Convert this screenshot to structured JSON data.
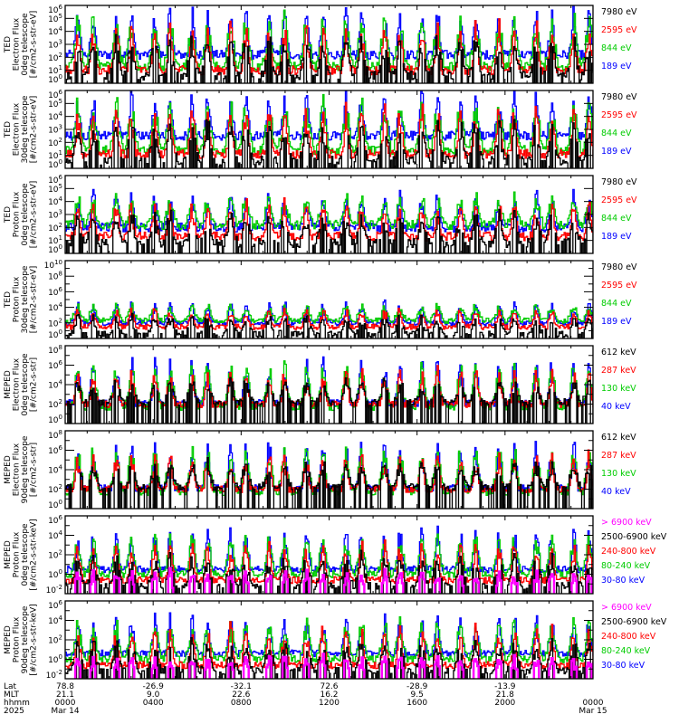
{
  "chart_data": {
    "type": "line",
    "title": "",
    "x_range_hours": [
      0,
      24
    ],
    "panels": [
      {
        "ylabel": [
          "TED",
          "Electron Flux",
          "0deg telescope",
          "[#/cm2-s-str-eV]"
        ],
        "yscale": "log",
        "ylim_exp": [
          0,
          6
        ],
        "yticks": [
          "10^0",
          "10^1",
          "10^2",
          "10^3",
          "10^4",
          "10^5",
          "10^6"
        ],
        "legend": [
          {
            "label": "7980 eV",
            "color": "#000000"
          },
          {
            "label": "2595 eV",
            "color": "#ff0000"
          },
          {
            "label": "844 eV",
            "color": "#00cc00"
          },
          {
            "label": "189 eV",
            "color": "#0000ff"
          }
        ],
        "baseline_exp": {
          "#0000ff": 2.2,
          "#00cc00": 1.3,
          "#ff0000": 1.0,
          "#000000": 0.6
        },
        "peak_exp": 5.5
      },
      {
        "ylabel": [
          "TED",
          "Electron Flux",
          "30deg telescope",
          "[#/cm2-s-str-eV]"
        ],
        "yscale": "log",
        "ylim_exp": [
          0,
          6
        ],
        "yticks": [
          "10^0",
          "10^1",
          "10^2",
          "10^3",
          "10^4",
          "10^5",
          "10^6"
        ],
        "legend": [
          {
            "label": "7980 eV",
            "color": "#000000"
          },
          {
            "label": "2595 eV",
            "color": "#ff0000"
          },
          {
            "label": "844 eV",
            "color": "#00cc00"
          },
          {
            "label": "189 eV",
            "color": "#0000ff"
          }
        ],
        "baseline_exp": {
          "#0000ff": 2.5,
          "#00cc00": 1.4,
          "#ff0000": 1.1,
          "#000000": 0.6
        },
        "peak_exp": 5.6
      },
      {
        "ylabel": [
          "TED",
          "Proton Flux",
          "0deg telescope",
          "[#/cm2-s-str-eV]"
        ],
        "yscale": "log",
        "ylim_exp": [
          0,
          6
        ],
        "yticks": [
          "10^0",
          "10^1",
          "10^2",
          "10^3",
          "10^4",
          "10^5",
          "10^6"
        ],
        "legend": [
          {
            "label": "7980 eV",
            "color": "#000000"
          },
          {
            "label": "2595 eV",
            "color": "#ff0000"
          },
          {
            "label": "844 eV",
            "color": "#00cc00"
          },
          {
            "label": "189 eV",
            "color": "#0000ff"
          }
        ],
        "baseline_exp": {
          "#0000ff": 2.0,
          "#00cc00": 2.2,
          "#ff0000": 1.3,
          "#000000": 0.8
        },
        "peak_exp": 4.6
      },
      {
        "ylabel": [
          "TED",
          "Proton Flux",
          "30deg telescope",
          "[#/cm2-s-str-eV]"
        ],
        "yscale": "log",
        "ylim_exp": [
          0,
          10
        ],
        "yticks": [
          "10^0",
          "10^2",
          "10^4",
          "10^6",
          "10^8",
          "10^10"
        ],
        "legend": [
          {
            "label": "7980 eV",
            "color": "#000000"
          },
          {
            "label": "2595 eV",
            "color": "#ff0000"
          },
          {
            "label": "844 eV",
            "color": "#00cc00"
          },
          {
            "label": "189 eV",
            "color": "#0000ff"
          }
        ],
        "baseline_exp": {
          "#0000ff": 2.0,
          "#00cc00": 2.3,
          "#ff0000": 1.5,
          "#000000": 0.6
        },
        "peak_exp": 4.5
      },
      {
        "ylabel": [
          "MEPED",
          "Electron Flux",
          "0deg telescope",
          "[#/cm2-s-str]"
        ],
        "yscale": "log",
        "ylim_exp": [
          0,
          8
        ],
        "yticks": [
          "10^0",
          "10^2",
          "10^4",
          "10^6",
          "10^8"
        ],
        "legend": [
          {
            "label": "612 keV",
            "color": "#000000"
          },
          {
            "label": "287 keV",
            "color": "#ff0000"
          },
          {
            "label": "130 keV",
            "color": "#00cc00"
          },
          {
            "label": "40 keV",
            "color": "#0000ff"
          }
        ],
        "baseline_exp": {
          "#0000ff": 2.1,
          "#00cc00": 1.7,
          "#ff0000": 2.0,
          "#000000": 2.2
        },
        "peak_exp": 6.3
      },
      {
        "ylabel": [
          "MEPED",
          "Electron Flux",
          "90deg telescope",
          "[#/cm2-s-str]"
        ],
        "yscale": "log",
        "ylim_exp": [
          0,
          8
        ],
        "yticks": [
          "10^0",
          "10^2",
          "10^4",
          "10^6",
          "10^8"
        ],
        "legend": [
          {
            "label": "612 keV",
            "color": "#000000"
          },
          {
            "label": "287 keV",
            "color": "#ff0000"
          },
          {
            "label": "130 keV",
            "color": "#00cc00"
          },
          {
            "label": "40 keV",
            "color": "#0000ff"
          }
        ],
        "baseline_exp": {
          "#0000ff": 2.1,
          "#00cc00": 1.7,
          "#ff0000": 2.0,
          "#000000": 2.2
        },
        "peak_exp": 6.6
      },
      {
        "ylabel": [
          "MEPED",
          "Proton Flux",
          "0deg telescope",
          "[#/cm2-s-str-keV]"
        ],
        "yscale": "log",
        "ylim_exp": [
          -2,
          6
        ],
        "yticks": [
          "10^-2",
          "10^0",
          "10^2",
          "10^4",
          "10^6"
        ],
        "legend": [
          {
            "label": "> 6900 keV",
            "color": "#ff00ff"
          },
          {
            "label": "2500-6900 keV",
            "color": "#000000"
          },
          {
            "label": "240-800 keV",
            "color": "#ff0000"
          },
          {
            "label": "80-240 keV",
            "color": "#00cc00"
          },
          {
            "label": "30-80 keV",
            "color": "#0000ff"
          }
        ],
        "baseline_exp": {
          "#0000ff": 0.5,
          "#00cc00": 0.0,
          "#ff0000": -0.6,
          "#000000": -1.2,
          "#ff00ff": -1.6
        },
        "peak_exp": 4.3
      },
      {
        "ylabel": [
          "MEPED",
          "Proton Flux",
          "90deg telescope",
          "[#/cm2-s-str-keV]"
        ],
        "yscale": "log",
        "ylim_exp": [
          -2,
          6
        ],
        "yticks": [
          "10^-2",
          "10^0",
          "10^2",
          "10^4",
          "10^6"
        ],
        "legend": [
          {
            "label": "> 6900 keV",
            "color": "#ff00ff"
          },
          {
            "label": "2500-6900 keV",
            "color": "#000000"
          },
          {
            "label": "240-800 keV",
            "color": "#ff0000"
          },
          {
            "label": "80-240 keV",
            "color": "#00cc00"
          },
          {
            "label": "30-80 keV",
            "color": "#0000ff"
          }
        ],
        "baseline_exp": {
          "#0000ff": 0.6,
          "#00cc00": 0.0,
          "#ff0000": -0.6,
          "#000000": -1.2,
          "#ff00ff": -1.6
        },
        "peak_exp": 4.3
      }
    ],
    "x_axis": {
      "row_labels": [
        "Lat",
        "MLT",
        "hhmm",
        "2025"
      ],
      "ticks": [
        {
          "hour": 0,
          "lat": "78.8",
          "mlt": "21.1",
          "hhmm": "0000",
          "date": "Mar 14"
        },
        {
          "hour": 4,
          "lat": "-26.9",
          "mlt": "9.0",
          "hhmm": "0400",
          "date": ""
        },
        {
          "hour": 8,
          "lat": "-32.1",
          "mlt": "22.6",
          "hhmm": "0800",
          "date": ""
        },
        {
          "hour": 12,
          "lat": "72.6",
          "mlt": "16.2",
          "hhmm": "1200",
          "date": ""
        },
        {
          "hour": 16,
          "lat": "-28.9",
          "mlt": "9.5",
          "hhmm": "1600",
          "date": ""
        },
        {
          "hour": 20,
          "lat": "-13.9",
          "mlt": "21.8",
          "hhmm": "2000",
          "date": ""
        },
        {
          "hour": 24,
          "lat": "",
          "mlt": "",
          "hhmm": "0000",
          "date": "Mar 15"
        }
      ]
    },
    "orbit_passes_hours": [
      0.55,
      1.25,
      2.3,
      3.0,
      4.05,
      4.75,
      5.75,
      6.45,
      7.5,
      8.2,
      9.25,
      9.95,
      10.95,
      11.7,
      12.75,
      13.45,
      14.5,
      15.2,
      16.2,
      16.9,
      17.95,
      18.65,
      19.7,
      20.4,
      21.4,
      22.1,
      23.1,
      23.8
    ]
  }
}
